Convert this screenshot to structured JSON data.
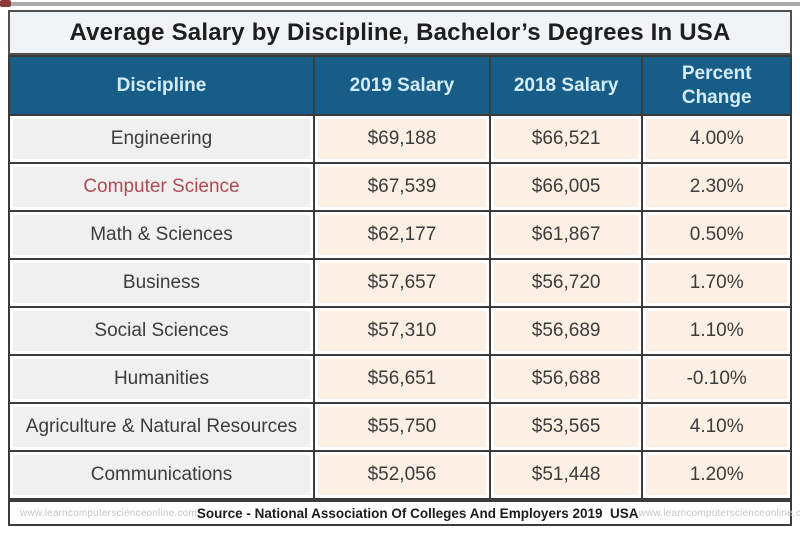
{
  "title": "Average Salary by Discipline, Bachelor’s Degrees In USA",
  "table": {
    "columns": [
      "Discipline",
      "2019 Salary",
      "2018 Salary",
      "Percent Change"
    ],
    "rows": [
      {
        "discipline": "Engineering",
        "salary_2019": "$69,188",
        "salary_2018": "$66,521",
        "percent_change": "4.00%",
        "highlighted": false
      },
      {
        "discipline": "Computer Science",
        "salary_2019": "$67,539",
        "salary_2018": "$66,005",
        "percent_change": "2.30%",
        "highlighted": true
      },
      {
        "discipline": "Math & Sciences",
        "salary_2019": "$62,177",
        "salary_2018": "$61,867",
        "percent_change": "0.50%",
        "highlighted": false
      },
      {
        "discipline": "Business",
        "salary_2019": "$57,657",
        "salary_2018": "$56,720",
        "percent_change": "1.70%",
        "highlighted": false
      },
      {
        "discipline": "Social Sciences",
        "salary_2019": "$57,310",
        "salary_2018": "$56,689",
        "percent_change": "1.10%",
        "highlighted": false
      },
      {
        "discipline": "Humanities",
        "salary_2019": "$56,651",
        "salary_2018": "$56,688",
        "percent_change": "-0.10%",
        "highlighted": false
      },
      {
        "discipline": "Agriculture & Natural Resources",
        "salary_2019": "$55,750",
        "salary_2018": "$53,565",
        "percent_change": "4.10%",
        "highlighted": false
      },
      {
        "discipline": "Communications",
        "salary_2019": "$52,056",
        "salary_2018": "$51,448",
        "percent_change": "1.20%",
        "highlighted": false
      }
    ]
  },
  "footer": {
    "watermark_left": "www.learncomputerscienceonline.com",
    "source": "Source - National Association Of Colleges And Employers 2019  USA",
    "watermark_right": "www.learncomputerscienceonline.com"
  },
  "colors": {
    "header_bg": "#175d88",
    "header_text": "#d3ecf8",
    "discipline_cell_bg": "#f0f0f0",
    "value_cell_bg": "#fcefe4",
    "highlight_red": "#b04b55",
    "grid_line": "#3b3b3b",
    "title_bg": "#f1f4f7",
    "body_text": "#3c3c3c",
    "watermark_text": "#c6c6c6"
  },
  "chart_data": {
    "type": "table",
    "title": "Average Salary by Discipline, Bachelor’s Degrees In USA",
    "columns": [
      "Discipline",
      "2019 Salary",
      "2018 Salary",
      "Percent Change"
    ],
    "rows": [
      [
        "Engineering",
        69188,
        66521,
        4.0
      ],
      [
        "Computer Science",
        67539,
        66005,
        2.3
      ],
      [
        "Math & Sciences",
        62177,
        61867,
        0.5
      ],
      [
        "Business",
        57657,
        56720,
        1.7
      ],
      [
        "Social Sciences",
        57310,
        56689,
        1.1
      ],
      [
        "Humanities",
        56651,
        56688,
        -0.1
      ],
      [
        "Agriculture & Natural Resources",
        55750,
        53565,
        4.1
      ],
      [
        "Communications",
        52056,
        51448,
        1.2
      ]
    ],
    "salary_currency": "USD",
    "percent_change_unit": "%",
    "source": "National Association Of Colleges And Employers 2019 USA",
    "highlighted_row": "Computer Science"
  }
}
